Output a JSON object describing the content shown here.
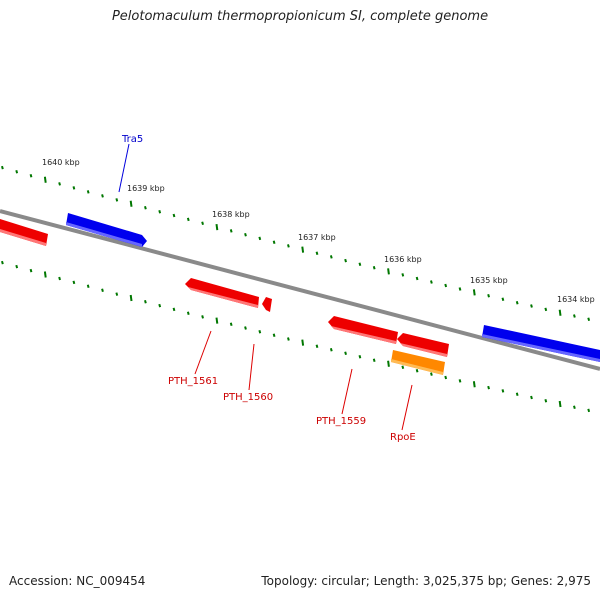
{
  "title": "Pelotomaculum thermopropionicum SI, complete genome",
  "footer": {
    "accession": "Accession: NC_009454",
    "summary": "Topology: circular; Length: 3,025,375 bp; Genes: 2,975"
  },
  "scale_labels": [
    "1640 kbp",
    "1639 kbp",
    "1638 kbp",
    "1637 kbp",
    "1636 kbp",
    "1635 kbp",
    "1634 kbp"
  ],
  "genes": [
    {
      "name": "Tra5",
      "color": "#0000dd",
      "strand": "forward"
    },
    {
      "name": "PTH_1561",
      "color": "#ee0000",
      "strand": "reverse"
    },
    {
      "name": "PTH_1560",
      "color": "#ee0000",
      "strand": "reverse"
    },
    {
      "name": "PTH_1559",
      "color": "#ee0000",
      "strand": "reverse"
    },
    {
      "name": "RpoE",
      "color": "#dd0000",
      "strand": "reverse"
    }
  ],
  "colors": {
    "forward_gene": "#0000ee",
    "reverse_gene": "#ee0000",
    "rRNA_gene": "#ff8800",
    "backbone": "#888888",
    "ticks": "#007700"
  }
}
